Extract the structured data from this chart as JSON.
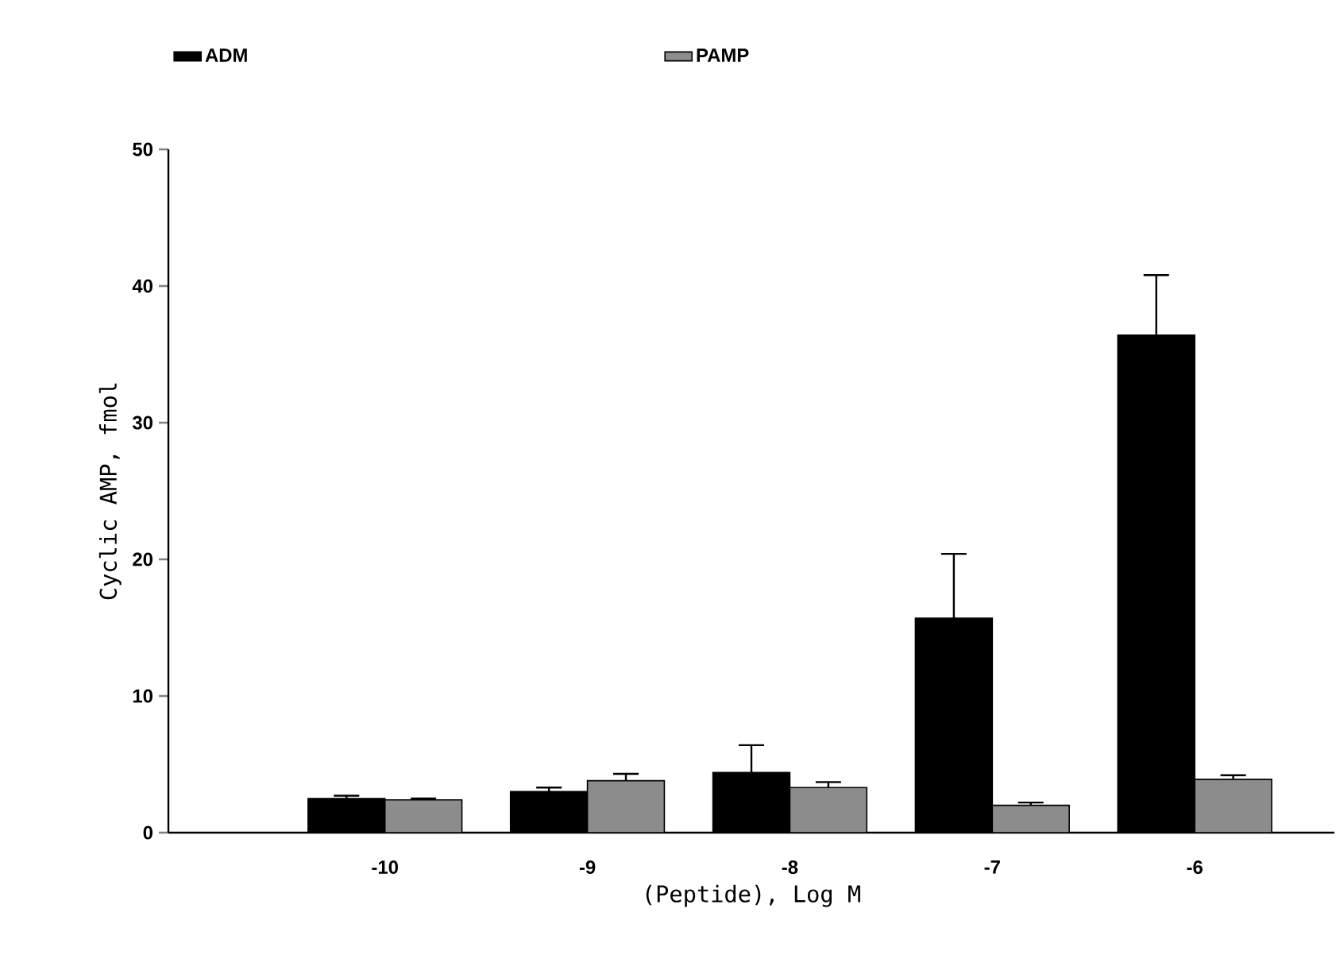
{
  "chart_data": {
    "type": "bar",
    "xlabel": "(Peptide), Log M",
    "ylabel": "Cyclic AMP, fmol",
    "categories": [
      "-10",
      "-9",
      "-8",
      "-7",
      "-6"
    ],
    "series": [
      {
        "name": "ADM",
        "color": "#000000",
        "values": [
          2.5,
          3.0,
          4.4,
          15.7,
          36.4
        ],
        "errors": [
          0.2,
          0.3,
          2.0,
          4.7,
          4.4
        ]
      },
      {
        "name": "PAMP",
        "color": "#8c8c8c",
        "values": [
          2.4,
          3.8,
          3.3,
          2.0,
          3.9
        ],
        "errors": [
          0.1,
          0.5,
          0.4,
          0.2,
          0.3
        ]
      }
    ],
    "ylim": [
      0,
      50
    ],
    "yticks": [
      0,
      10,
      20,
      30,
      40,
      50
    ],
    "legend": "top",
    "grid": false
  }
}
